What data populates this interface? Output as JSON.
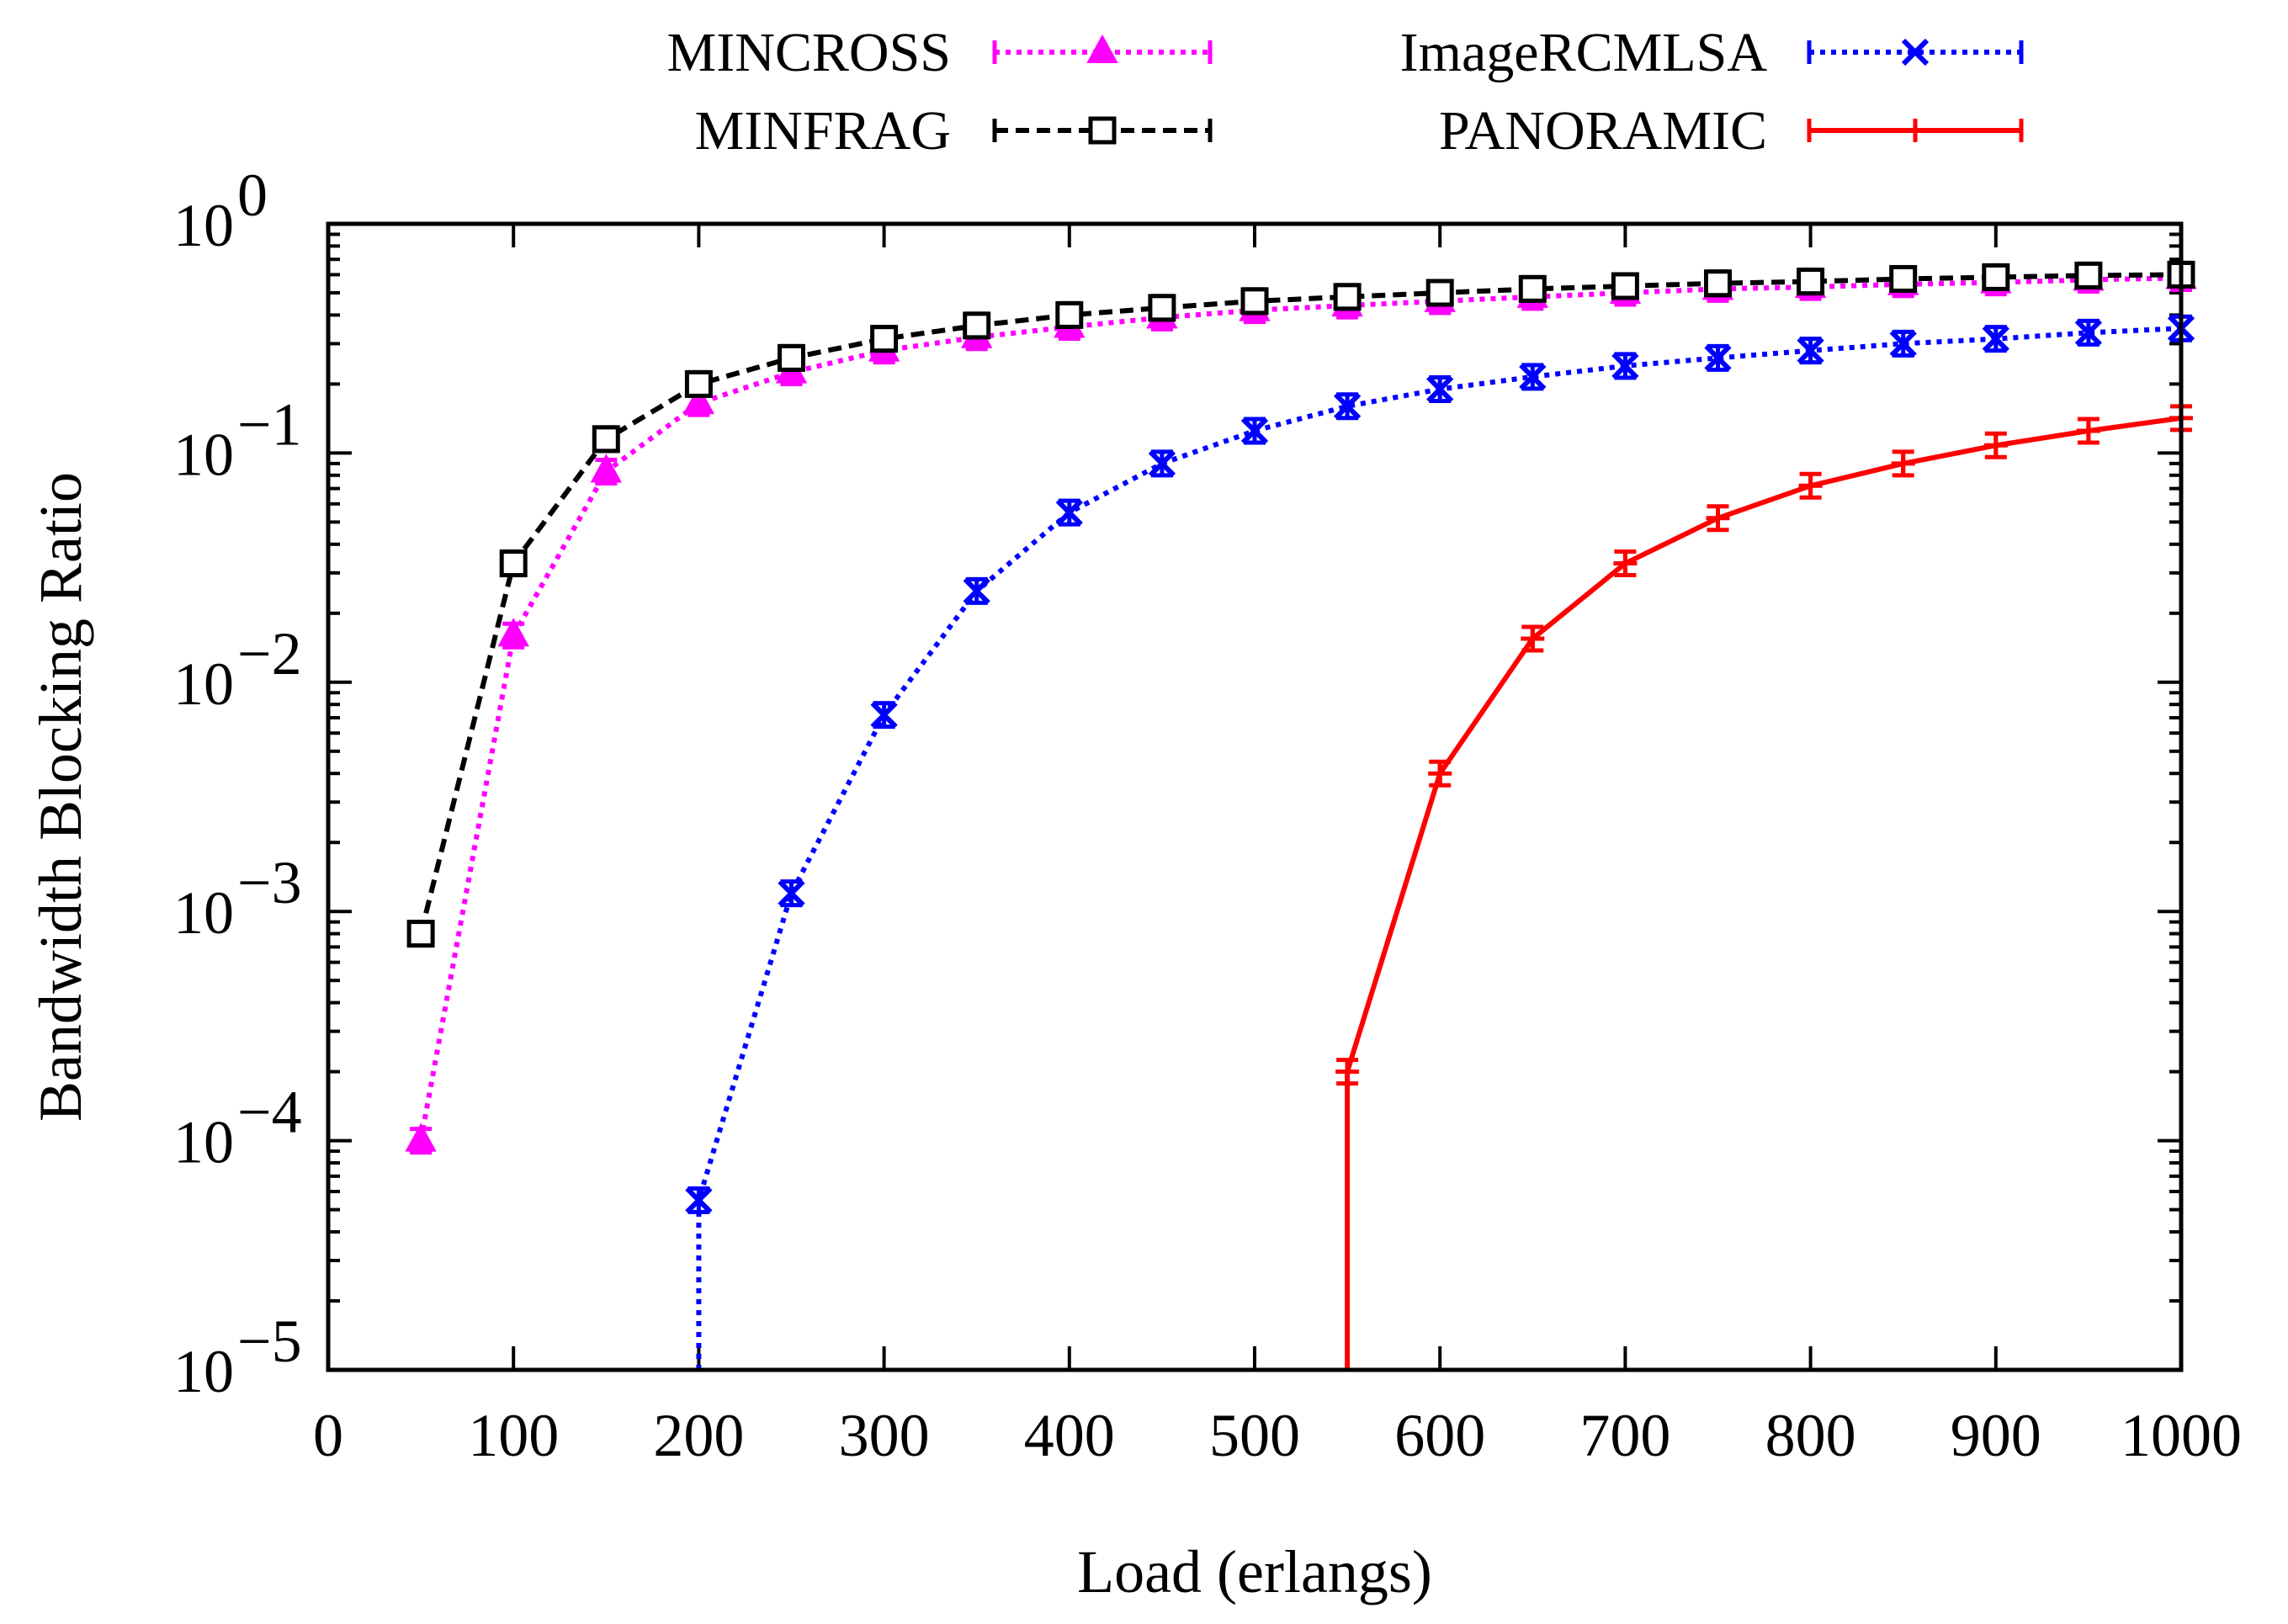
{
  "chart_data": {
    "type": "line",
    "xlabel": "Load (erlangs)",
    "ylabel": "Bandwidth Blocking Ratio",
    "xlim": [
      0,
      1000
    ],
    "ylim": [
      1e-05,
      1
    ],
    "yscale": "log",
    "x_ticks": [
      0,
      100,
      200,
      300,
      400,
      500,
      600,
      700,
      800,
      900,
      1000
    ],
    "x_tick_labels": [
      "0",
      "100",
      "200",
      "300",
      "400",
      "500",
      "600",
      "700",
      "800",
      "900",
      "1000"
    ],
    "y_ticks": [
      {
        "value": 1e-05,
        "base": "10",
        "exp": "−5"
      },
      {
        "value": 0.0001,
        "base": "10",
        "exp": "−4"
      },
      {
        "value": 0.001,
        "base": "10",
        "exp": "−3"
      },
      {
        "value": 0.01,
        "base": "10",
        "exp": "−2"
      },
      {
        "value": 0.1,
        "base": "10",
        "exp": "−1"
      },
      {
        "value": 1,
        "base": "10",
        "exp": "0"
      }
    ],
    "legend_position": "top",
    "series": [
      {
        "name": "MINCROSS",
        "color": "#ff00ff",
        "dash": "dotted",
        "marker": "triangle",
        "x": [
          50,
          100,
          150,
          200,
          250,
          300,
          350,
          400,
          450,
          500,
          550,
          600,
          650,
          700,
          750,
          800,
          850,
          900,
          950,
          1000
        ],
        "y": [
          0.0001,
          0.016,
          0.083,
          0.165,
          0.225,
          0.28,
          0.32,
          0.355,
          0.39,
          0.42,
          0.44,
          0.46,
          0.48,
          0.5,
          0.52,
          0.53,
          0.545,
          0.555,
          0.57,
          0.58
        ]
      },
      {
        "name": "MINFRAG",
        "color": "#000000",
        "dash": "dashed",
        "marker": "square",
        "x": [
          50,
          100,
          150,
          200,
          250,
          300,
          350,
          400,
          450,
          500,
          550,
          600,
          650,
          700,
          750,
          800,
          850,
          900,
          950,
          1000
        ],
        "y": [
          0.0008,
          0.033,
          0.115,
          0.2,
          0.26,
          0.315,
          0.36,
          0.4,
          0.43,
          0.46,
          0.48,
          0.5,
          0.52,
          0.535,
          0.55,
          0.56,
          0.575,
          0.585,
          0.595,
          0.6
        ]
      },
      {
        "name": "ImageRCMLSA",
        "color": "#0000ff",
        "dash": "dotted",
        "marker": "cross",
        "x": [
          200,
          250,
          300,
          350,
          400,
          450,
          500,
          550,
          600,
          650,
          700,
          750,
          800,
          850,
          900,
          950,
          1000
        ],
        "y": [
          5.5e-05,
          0.0012,
          0.0072,
          0.025,
          0.055,
          0.09,
          0.125,
          0.16,
          0.19,
          0.215,
          0.24,
          0.26,
          0.28,
          0.3,
          0.315,
          0.335,
          0.35
        ],
        "drop_to_floor_at": 200
      },
      {
        "name": "PANORAMIC",
        "color": "#ff0000",
        "dash": "solid",
        "marker": "plus",
        "x": [
          550,
          600,
          650,
          700,
          750,
          800,
          850,
          900,
          950,
          1000
        ],
        "y": [
          0.0002,
          0.004,
          0.0155,
          0.033,
          0.052,
          0.072,
          0.09,
          0.108,
          0.125,
          0.142
        ],
        "drop_to_floor_at": 550
      }
    ]
  }
}
